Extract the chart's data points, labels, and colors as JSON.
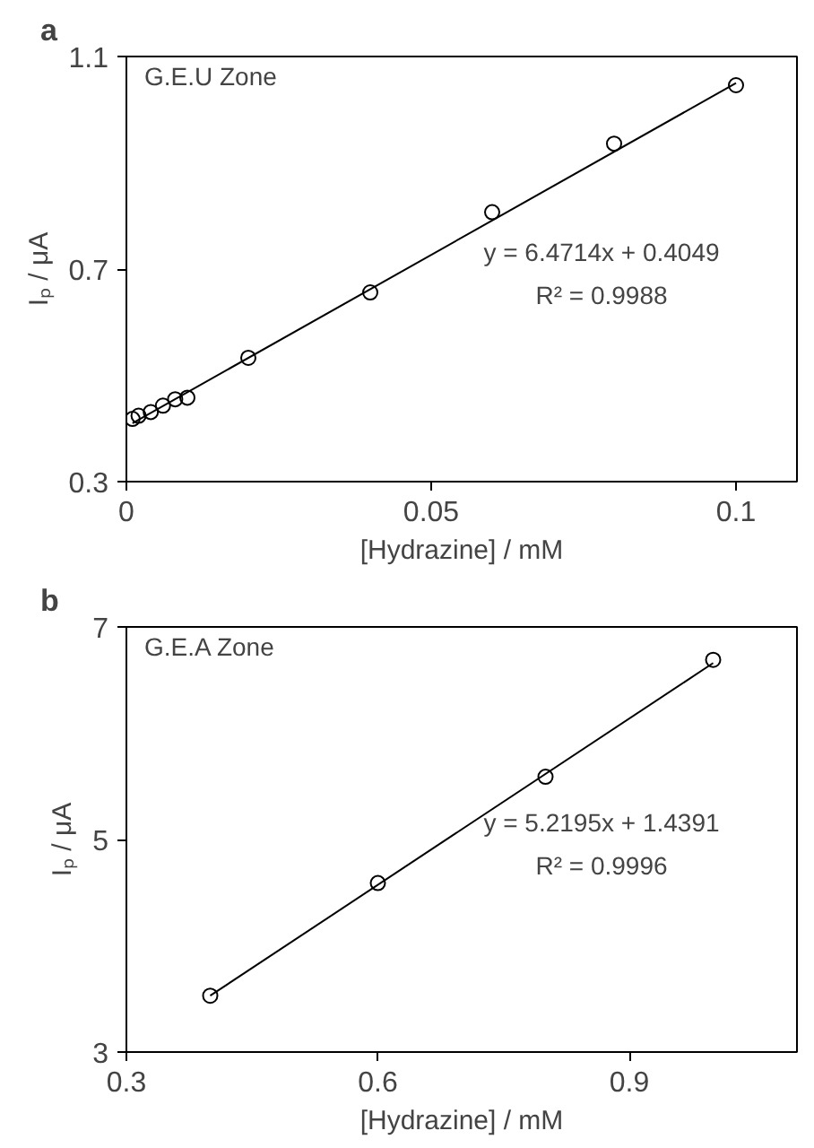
{
  "chart_data": [
    {
      "type": "scatter",
      "title": "a",
      "xlabel": "[Hydrazine] / mM",
      "ylabel": "Iₚ / μA",
      "xlim": [
        0,
        0.11
      ],
      "xticks": [
        0,
        0.05,
        0.1
      ],
      "ylim": [
        0.3,
        1.1
      ],
      "yticks": [
        0.3,
        0.7,
        1.1
      ],
      "grid": false,
      "annotations": [
        "G.E.U Zone",
        "y = 6.4714x + 0.4049",
        "R² = 0.9988"
      ],
      "series": [
        {
          "type": "scatter",
          "marker": "circle",
          "color": "#000000",
          "x": [
            0.001,
            0.002,
            0.004,
            0.006,
            0.008,
            0.01,
            0.02,
            0.04,
            0.06,
            0.08,
            0.1
          ],
          "values": [
            0.418,
            0.424,
            0.431,
            0.443,
            0.455,
            0.458,
            0.533,
            0.656,
            0.807,
            0.936,
            1.046
          ]
        },
        {
          "type": "line",
          "marker": "none",
          "color": "#000000",
          "x": [
            0.001,
            0.1
          ],
          "values": [
            0.41,
            1.05
          ]
        }
      ]
    },
    {
      "type": "scatter",
      "title": "b",
      "xlabel": "[Hydrazine] / mM",
      "ylabel": "Iₚ / μA",
      "xlim": [
        0.3,
        1.1
      ],
      "xticks": [
        0.3,
        0.6,
        0.9
      ],
      "ylim": [
        3,
        7
      ],
      "yticks": [
        3,
        5,
        7
      ],
      "grid": false,
      "annotations": [
        "G.E.A Zone",
        "y = 5.2195x + 1.4391",
        "R² = 0.9996"
      ],
      "series": [
        {
          "type": "scatter",
          "marker": "circle",
          "color": "#000000",
          "x": [
            0.4,
            0.6,
            0.8,
            1.0
          ],
          "values": [
            3.53,
            4.59,
            5.59,
            6.69
          ]
        },
        {
          "type": "line",
          "marker": "none",
          "color": "#000000",
          "x": [
            0.4,
            1.0
          ],
          "values": [
            3.53,
            6.66
          ]
        }
      ]
    }
  ]
}
